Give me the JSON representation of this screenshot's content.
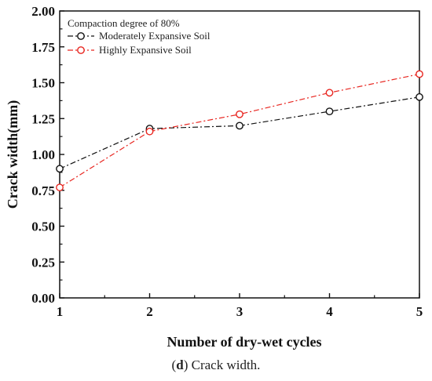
{
  "chart_data": {
    "type": "line",
    "x": [
      1,
      2,
      3,
      4,
      5
    ],
    "xlim": [
      1,
      5
    ],
    "ylim": [
      0,
      2
    ],
    "xticks": [
      "1",
      "2",
      "3",
      "4",
      "5"
    ],
    "yticks": [
      "0.00",
      "0.25",
      "0.50",
      "0.75",
      "1.00",
      "1.25",
      "1.50",
      "1.75",
      "2.00"
    ],
    "xlabel": "Number of dry-wet cycles",
    "ylabel": "Crack width(mm)",
    "legend_title": "Compaction degree of 80%",
    "legend_position": "top-left",
    "grid": false,
    "series": [
      {
        "name": "Moderately Expansive Soil",
        "color": "#111111",
        "values": [
          0.9,
          1.18,
          1.2,
          1.3,
          1.4
        ]
      },
      {
        "name": "Highly Expansive Soil",
        "color": "#e8251f",
        "values": [
          0.77,
          1.16,
          1.28,
          1.43,
          1.56
        ]
      }
    ]
  },
  "caption": {
    "letter": "d",
    "text": " Crack width."
  }
}
